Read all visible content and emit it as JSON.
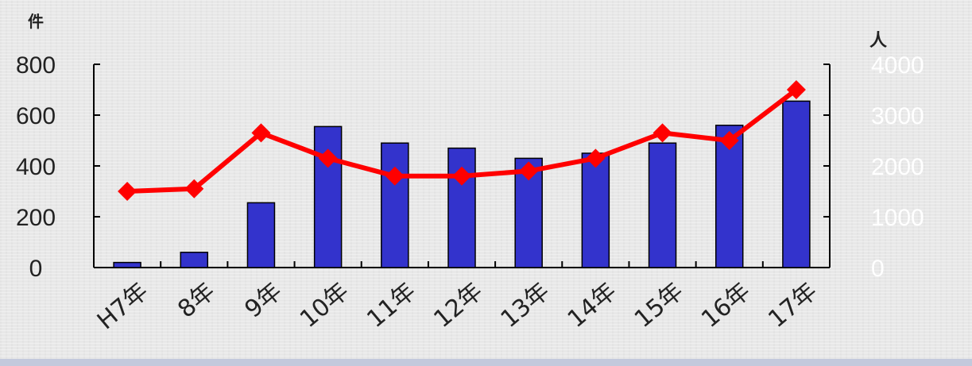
{
  "chart_data": {
    "type": "bar+line",
    "left_unit": "件",
    "right_unit": "人",
    "left_ticks": [
      "0",
      "200",
      "400",
      "600",
      "800"
    ],
    "right_ticks": [
      "0",
      "1000",
      "2000",
      "3000",
      "4000"
    ],
    "left_ylim": [
      0,
      800
    ],
    "right_ylim": [
      0,
      4000
    ],
    "categories": [
      "H7年",
      "8年",
      "9年",
      "10年",
      "11年",
      "12年",
      "13年",
      "14年",
      "15年",
      "16年",
      "17年"
    ],
    "series": [
      {
        "type": "bar",
        "axis": "left",
        "values": [
          20,
          60,
          255,
          555,
          490,
          470,
          430,
          450,
          490,
          560,
          655
        ]
      },
      {
        "type": "line",
        "axis": "right",
        "values": [
          1500,
          1550,
          2650,
          2150,
          1800,
          1800,
          1900,
          2150,
          2650,
          2500,
          3500
        ]
      }
    ],
    "colors": {
      "bar": "#3333cc",
      "line": "#ff0000"
    },
    "grid": false
  }
}
